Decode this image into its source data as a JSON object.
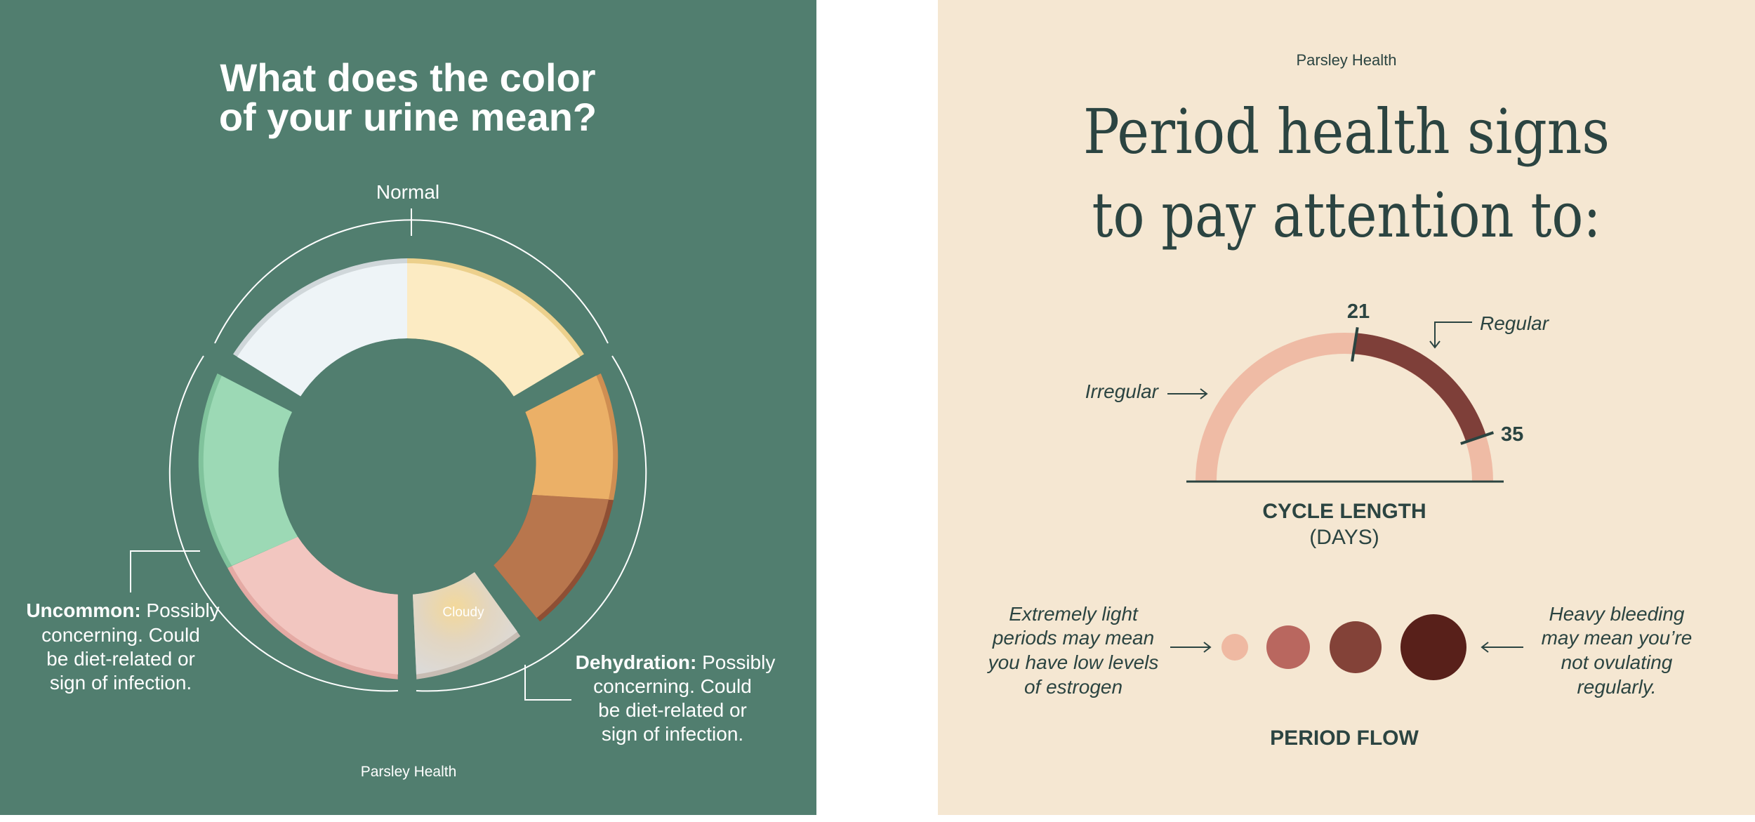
{
  "colors": {
    "left_bg": "#517e6f",
    "right_bg": "#f5e7d2",
    "text_light": "#ffffff",
    "text_dark": "#2b4441",
    "irregular": "#efbba5",
    "regular": "#7e3f39"
  },
  "left": {
    "title_line1": "What does the color",
    "title_line2": "of your urine mean?",
    "normal_label": "Normal",
    "cloudy_label": "Cloudy",
    "uncommon": {
      "bold": "Uncommon:",
      "line1_rest": " Possibly",
      "line2": "concerning. Could",
      "line3": "be diet-related or",
      "line4": "sign of infection."
    },
    "dehydration": {
      "bold": "Dehydration:",
      "line1_rest": " Possibly",
      "line2": "concerning. Could",
      "line3": "be diet-related or",
      "line4": "sign of infection."
    },
    "brand": "Parsley Health",
    "segment_colors": [
      "#eef4f7",
      "#fcebc3",
      "#ebb067",
      "#b8764d",
      "#e0ddda",
      "#f2c6c0",
      "#9cd9b5"
    ]
  },
  "right": {
    "brand": "Parsley Health",
    "title_line1": "Period health signs",
    "title_line2": "to pay attention to:",
    "gauge": {
      "irregular_label": "Irregular",
      "regular_label": "Regular",
      "tick_21": "21",
      "tick_35": "35",
      "axis_label": "CYCLE LENGTH",
      "axis_unit": "(DAYS)"
    },
    "flow": {
      "light_line1": "Extremely light",
      "light_line2": "periods may mean",
      "light_line3": "you have low levels",
      "light_line4": "of estrogen",
      "heavy_line1": "Heavy bleeding",
      "heavy_line2": "may mean you’re",
      "heavy_line3": "not ovulating",
      "heavy_line4": "regularly.",
      "label": "PERIOD FLOW",
      "dot_colors": [
        "#efb9a2",
        "#b9675f",
        "#834238",
        "#58201a"
      ]
    }
  }
}
